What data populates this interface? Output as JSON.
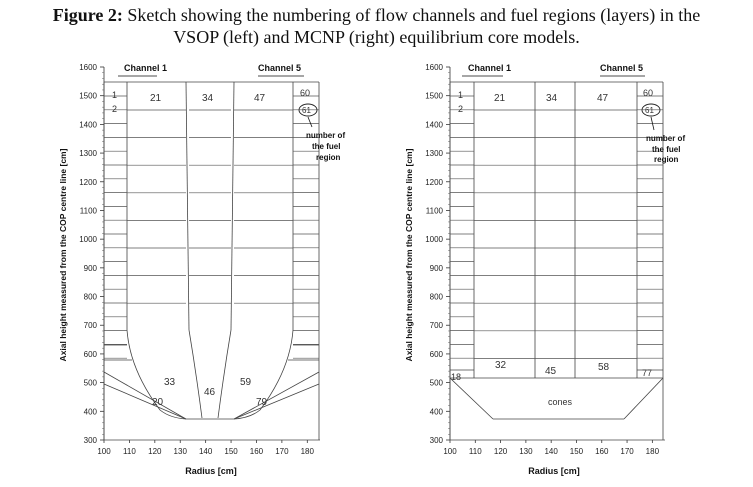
{
  "caption": {
    "label": "Figure 2:",
    "line1": "Sketch showing the numbering of flow channels and fuel regions (layers) in the",
    "line2": "VSOP (left) and MCNP (right) equilibrium core models."
  },
  "left_chart": {
    "ylabel": "Axial height measured from the COP centre line [cm]",
    "xlabel": "Radius [cm]",
    "channel_first": "Channel 1",
    "channel_last": "Channel 5",
    "annotation": [
      "number of",
      "the fuel",
      "region"
    ],
    "regions_top": [
      "1",
      "2",
      "21",
      "34",
      "47",
      "60",
      "61"
    ],
    "regions_bottom": [
      "33",
      "46",
      "59",
      "20",
      "79"
    ]
  },
  "right_chart": {
    "ylabel": "Axial height measured from the COP centre line [cm]",
    "xlabel": "Radius [cm]",
    "channel_first": "Channel 1",
    "channel_last": "Channel 5",
    "annotation": [
      "number of",
      "the fuel",
      "region"
    ],
    "regions_top": [
      "1",
      "2",
      "21",
      "34",
      "47",
      "60",
      "61"
    ],
    "regions_bottom": [
      "32",
      "45",
      "58",
      "18",
      "77"
    ],
    "cones_label": "cones"
  },
  "chart_data": [
    {
      "type": "diagram",
      "xlabel": "Radius [cm]",
      "ylabel": "Axial height measured from the COP centre line [cm]",
      "xlim": [
        100,
        185
      ],
      "ylim": [
        300,
        1600
      ],
      "xticks": [
        100,
        110,
        120,
        130,
        140,
        150,
        160,
        170,
        180
      ],
      "yticks": [
        300,
        400,
        500,
        600,
        700,
        800,
        900,
        1000,
        1100,
        1200,
        1300,
        1400,
        1500,
        1600
      ]
    },
    {
      "type": "diagram",
      "xlabel": "Radius [cm]",
      "ylabel": "Axial height measured from the COP centre line [cm]",
      "xlim": [
        100,
        185
      ],
      "ylim": [
        300,
        1600
      ],
      "xticks": [
        100,
        110,
        120,
        130,
        140,
        150,
        160,
        170,
        180
      ],
      "yticks": [
        300,
        400,
        500,
        600,
        700,
        800,
        900,
        1000,
        1100,
        1200,
        1300,
        1400,
        1500,
        1600
      ]
    }
  ]
}
